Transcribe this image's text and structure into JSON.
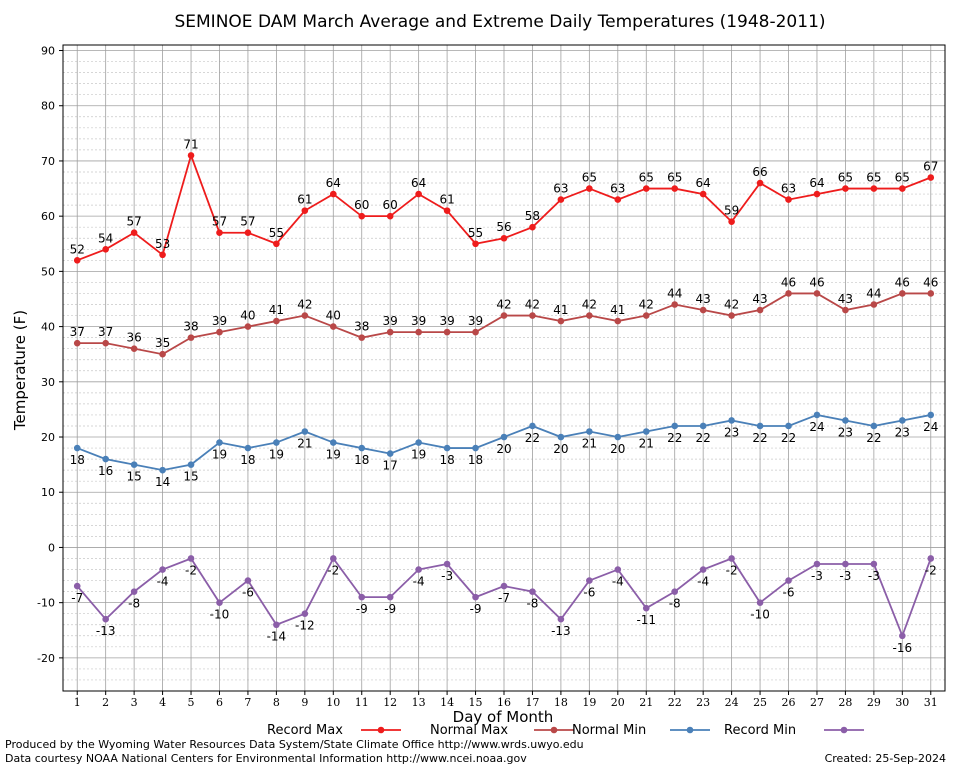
{
  "chart_data": {
    "type": "line",
    "title": "SEMINOE DAM March Average and Extreme Daily Temperatures (1948-2011)",
    "xlabel": "Day of Month",
    "ylabel": "Temperature (F)",
    "xlim": [
      0.5,
      31.5
    ],
    "ylim": [
      -26,
      91
    ],
    "yticks": [
      -20,
      -10,
      0,
      10,
      20,
      30,
      40,
      50,
      60,
      70,
      80,
      90
    ],
    "x": [
      1,
      2,
      3,
      4,
      5,
      6,
      7,
      8,
      9,
      10,
      11,
      12,
      13,
      14,
      15,
      16,
      17,
      18,
      19,
      20,
      21,
      22,
      23,
      24,
      25,
      26,
      27,
      28,
      29,
      30,
      31
    ],
    "grid": true,
    "legend_position": "bottom",
    "series": [
      {
        "name": "Record Max",
        "color": "#ee1c1c",
        "label_position": "above",
        "values": [
          52,
          54,
          57,
          53,
          71,
          57,
          57,
          55,
          61,
          64,
          60,
          60,
          64,
          61,
          55,
          56,
          58,
          63,
          65,
          63,
          65,
          65,
          64,
          59,
          66,
          63,
          64,
          65,
          65,
          65,
          67
        ]
      },
      {
        "name": "Normal Max",
        "color": "#b94848",
        "label_position": "above",
        "values": [
          37,
          37,
          36,
          35,
          38,
          39,
          40,
          41,
          42,
          40,
          38,
          39,
          39,
          39,
          39,
          42,
          42,
          41,
          42,
          41,
          42,
          44,
          43,
          42,
          43,
          46,
          46,
          43,
          44,
          46,
          46
        ]
      },
      {
        "name": "Normal Min",
        "color": "#4a80b8",
        "label_position": "below",
        "values": [
          18,
          16,
          15,
          14,
          15,
          19,
          18,
          19,
          21,
          19,
          18,
          17,
          19,
          18,
          18,
          20,
          22,
          20,
          21,
          20,
          21,
          22,
          22,
          23,
          22,
          22,
          24,
          23,
          22,
          23,
          24
        ]
      },
      {
        "name": "Record Min",
        "color": "#8b5ea8",
        "label_position": "below",
        "values": [
          -7,
          -13,
          -8,
          -4,
          -2,
          -10,
          -6,
          -14,
          -12,
          -2,
          -9,
          -9,
          -4,
          -3,
          -9,
          -7,
          -8,
          -13,
          -6,
          -4,
          -11,
          -8,
          -4,
          -2,
          -10,
          -6,
          -3,
          -3,
          -3,
          -16,
          -2
        ]
      }
    ]
  },
  "footer": {
    "credit_line_1": "Produced by the Wyoming Water Resources Data System/State Climate Office http://www.wrds.uwyo.edu",
    "credit_line_2": "Data courtesy NOAA National Centers for Environmental Information http://www.ncei.noaa.gov",
    "created": "Created:  25-Sep-2024"
  }
}
